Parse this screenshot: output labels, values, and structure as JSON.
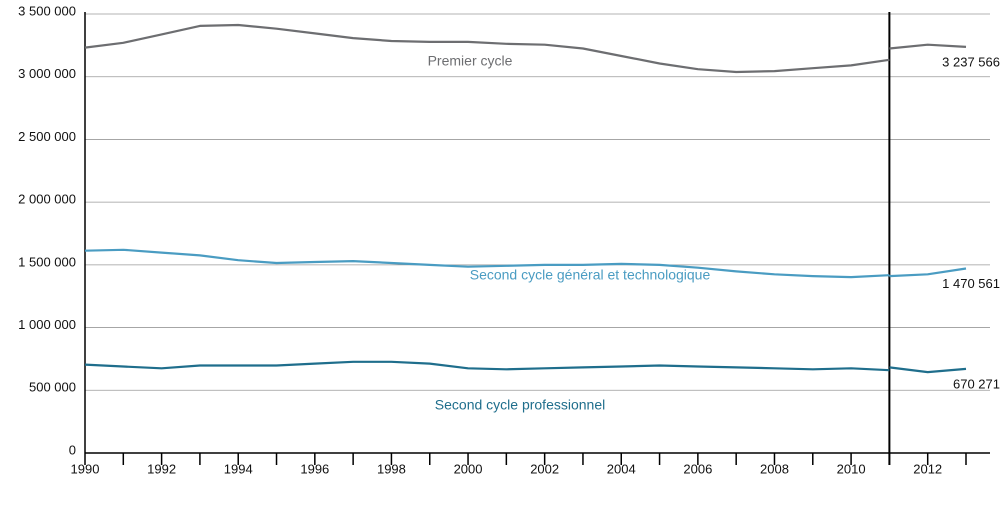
{
  "chart_data": {
    "type": "line",
    "x": [
      1990,
      1991,
      1992,
      1993,
      1994,
      1995,
      1996,
      1997,
      1998,
      1999,
      2000,
      2001,
      2002,
      2003,
      2004,
      2005,
      2006,
      2007,
      2008,
      2009,
      2010,
      2011
    ],
    "x2": [
      2011,
      2012,
      2013
    ],
    "divider_x": 2011,
    "xlim": [
      1990,
      2013
    ],
    "xticks": [
      1990,
      1992,
      1994,
      1996,
      1998,
      2000,
      2002,
      2004,
      2006,
      2008,
      2010,
      2012
    ],
    "ylim": [
      0,
      3500000
    ],
    "yticks": [
      0,
      {
        "value": 500000,
        "label": "500 000"
      },
      {
        "value": 1000000,
        "label": "1 000 000"
      },
      {
        "value": 1500000,
        "label": "1 500 000"
      },
      {
        "value": 2000000,
        "label": "2 000 000"
      },
      {
        "value": 2500000,
        "label": "2 500 000"
      },
      {
        "value": 3000000,
        "label": "3 000 000"
      },
      {
        "value": 3500000,
        "label": "3 500 000"
      }
    ],
    "grid": true,
    "series": [
      {
        "name": "Premier cycle",
        "color": "#6d6e71",
        "values": [
          3232500,
          3270000,
          3337500,
          3405000,
          3412500,
          3382500,
          3345000,
          3307500,
          3285000,
          3277500,
          3277500,
          3262500,
          3255000,
          3225000,
          3165000,
          3105000,
          3060000,
          3037500,
          3045000,
          3067500,
          3090000,
          3135000
        ],
        "values2": [
          3225000,
          3255000,
          3237566
        ],
        "value_labels2": [
          null,
          null,
          "3 237 566"
        ]
      },
      {
        "name": "Second cycle général et technologique",
        "color": "#4a9cc2",
        "values": [
          1612500,
          1620000,
          1597500,
          1575000,
          1537500,
          1515000,
          1522500,
          1530000,
          1515000,
          1500000,
          1485000,
          1492500,
          1500000,
          1500000,
          1507500,
          1500000,
          1477500,
          1447500,
          1425000,
          1410000,
          1402500,
          1417500
        ],
        "values2": [
          1410000,
          1425000,
          1470561
        ],
        "value_labels2": [
          null,
          null,
          "1 470 561"
        ]
      },
      {
        "name": "Second cycle professionnel",
        "color": "#1f6e8c",
        "values": [
          705000,
          690000,
          675000,
          697500,
          697500,
          697500,
          712500,
          727500,
          727500,
          712500,
          675000,
          667500,
          675000,
          682500,
          690000,
          697500,
          690000,
          682500,
          675000,
          667500,
          675000,
          660000
        ],
        "values2": [
          682500,
          645000,
          670271
        ],
        "value_labels2": [
          null,
          null,
          "670 271"
        ]
      }
    ]
  }
}
